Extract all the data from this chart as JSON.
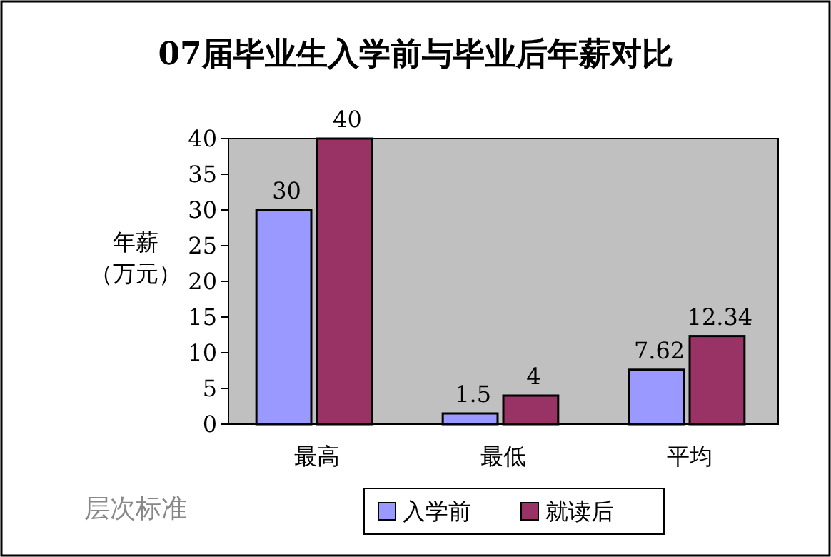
{
  "chart_data": {
    "type": "bar",
    "title": "07届毕业生入学前与毕业后年薪对比",
    "ylabel": "年薪（万元）",
    "legend_title": "层次标准",
    "categories": [
      "最高",
      "最低",
      "平均"
    ],
    "series": [
      {
        "name": "入学前",
        "color": "#9999ff",
        "values": [
          30,
          1.5,
          7.62
        ]
      },
      {
        "name": "就读后",
        "color": "#993366",
        "values": [
          40,
          4,
          12.34
        ]
      }
    ],
    "ylim": [
      0,
      40
    ],
    "yticks": [
      0,
      5,
      10,
      15,
      20,
      25,
      30,
      35,
      40
    ],
    "grid": false,
    "legend": "bottom",
    "data_labels": true
  }
}
